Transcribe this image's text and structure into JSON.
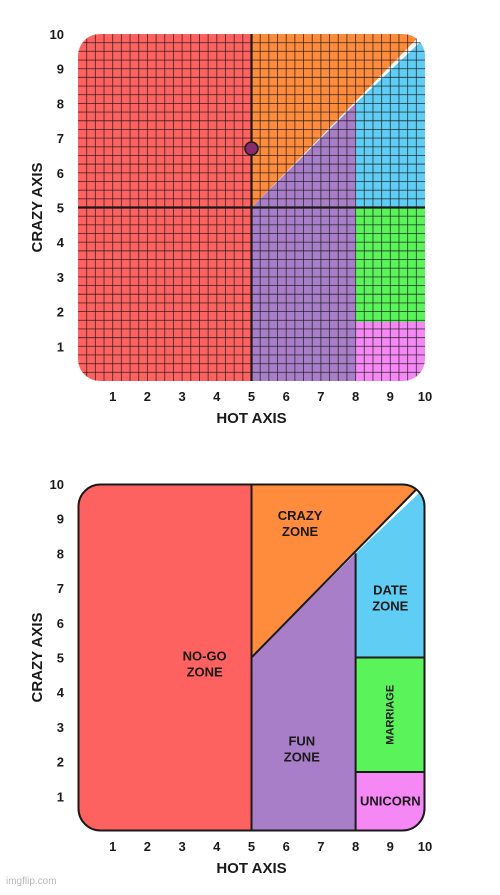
{
  "chart_data": [
    {
      "type": "area",
      "xlabel": "HOT AXIS",
      "ylabel": "CRAZY AXIS",
      "xlim": [
        2,
        10
      ],
      "ylim": [
        0,
        10
      ],
      "xticks": [
        "1",
        "2",
        "3",
        "4",
        "5",
        "6",
        "7",
        "8",
        "9",
        "10"
      ],
      "yticks": [
        "1",
        "2",
        "3",
        "4",
        "5",
        "6",
        "7",
        "8",
        "9",
        "10"
      ],
      "grid": true,
      "grid_step": 0.25,
      "crosshair": {
        "x": 5,
        "y": 5
      },
      "zones": [
        {
          "name": "no-go",
          "color": "#fe6260",
          "polygon": [
            [
              0,
              0
            ],
            [
              5,
              0
            ],
            [
              5,
              10
            ],
            [
              0,
              10
            ]
          ]
        },
        {
          "name": "crazy",
          "color": "#fe8c3c",
          "polygon": [
            [
              5,
              5
            ],
            [
              5,
              10
            ],
            [
              9.9,
              10
            ]
          ]
        },
        {
          "name": "fun",
          "color": "#a97ec8",
          "polygon": [
            [
              5,
              0
            ],
            [
              8,
              0
            ],
            [
              8,
              8
            ],
            [
              5,
              5
            ]
          ]
        },
        {
          "name": "date",
          "color": "#5fcdf4",
          "polygon": [
            [
              8,
              5
            ],
            [
              10,
              5
            ],
            [
              10,
              9.9
            ],
            [
              8,
              8
            ]
          ]
        },
        {
          "name": "marriage",
          "color": "#5af45a",
          "polygon": [
            [
              8,
              1.7
            ],
            [
              10,
              1.7
            ],
            [
              10,
              5
            ],
            [
              8,
              5
            ]
          ]
        },
        {
          "name": "unicorn",
          "color": "#f588f5",
          "polygon": [
            [
              8,
              0
            ],
            [
              10,
              0
            ],
            [
              10,
              1.7
            ],
            [
              8,
              1.7
            ]
          ]
        }
      ],
      "points": [
        {
          "x": 5,
          "y": 6.7,
          "color": "#8a2b6a"
        }
      ]
    },
    {
      "type": "area",
      "xlabel": "HOT AXIS",
      "ylabel": "CRAZY AXIS",
      "xlim": [
        2,
        10
      ],
      "ylim": [
        0,
        10
      ],
      "xticks": [
        "1",
        "2",
        "3",
        "4",
        "5",
        "6",
        "7",
        "8",
        "9",
        "10"
      ],
      "yticks": [
        "1",
        "2",
        "3",
        "4",
        "5",
        "6",
        "7",
        "8",
        "9",
        "10"
      ],
      "grid": false,
      "zones": [
        {
          "name": "no-go",
          "label": "NO-GO\nZONE",
          "color": "#fe6260",
          "polygon": [
            [
              0,
              0
            ],
            [
              5,
              0
            ],
            [
              5,
              10
            ],
            [
              0,
              10
            ]
          ],
          "label_pos": [
            3.65,
            4.8
          ]
        },
        {
          "name": "crazy",
          "label": "CRAZY\nZONE",
          "color": "#fe8c3c",
          "polygon": [
            [
              5,
              5
            ],
            [
              5,
              10
            ],
            [
              9.9,
              10
            ]
          ],
          "label_pos": [
            6.4,
            8.85
          ]
        },
        {
          "name": "fun",
          "label": "FUN\nZONE",
          "color": "#a97ec8",
          "polygon": [
            [
              5,
              0
            ],
            [
              8,
              0
            ],
            [
              8,
              8
            ],
            [
              5,
              5
            ]
          ],
          "label_pos": [
            6.45,
            2.35
          ]
        },
        {
          "name": "date",
          "label": "DATE\nZONE",
          "color": "#5fcdf4",
          "polygon": [
            [
              8,
              5
            ],
            [
              10,
              5
            ],
            [
              10,
              9.9
            ],
            [
              8,
              8
            ]
          ],
          "label_pos": [
            9.0,
            6.7
          ]
        },
        {
          "name": "marriage",
          "label": "MARRIAGE",
          "color": "#5af45a",
          "polygon": [
            [
              8,
              1.7
            ],
            [
              10,
              1.7
            ],
            [
              10,
              5
            ],
            [
              8,
              5
            ]
          ],
          "label_pos": [
            9.0,
            3.35
          ],
          "rotate": true
        },
        {
          "name": "unicorn",
          "label": "UNICORN",
          "color": "#f588f5",
          "polygon": [
            [
              8,
              0
            ],
            [
              10,
              0
            ],
            [
              10,
              1.7
            ],
            [
              8,
              1.7
            ]
          ],
          "label_pos": [
            9.0,
            0.85
          ]
        }
      ]
    }
  ],
  "watermark": "imgflip.com"
}
